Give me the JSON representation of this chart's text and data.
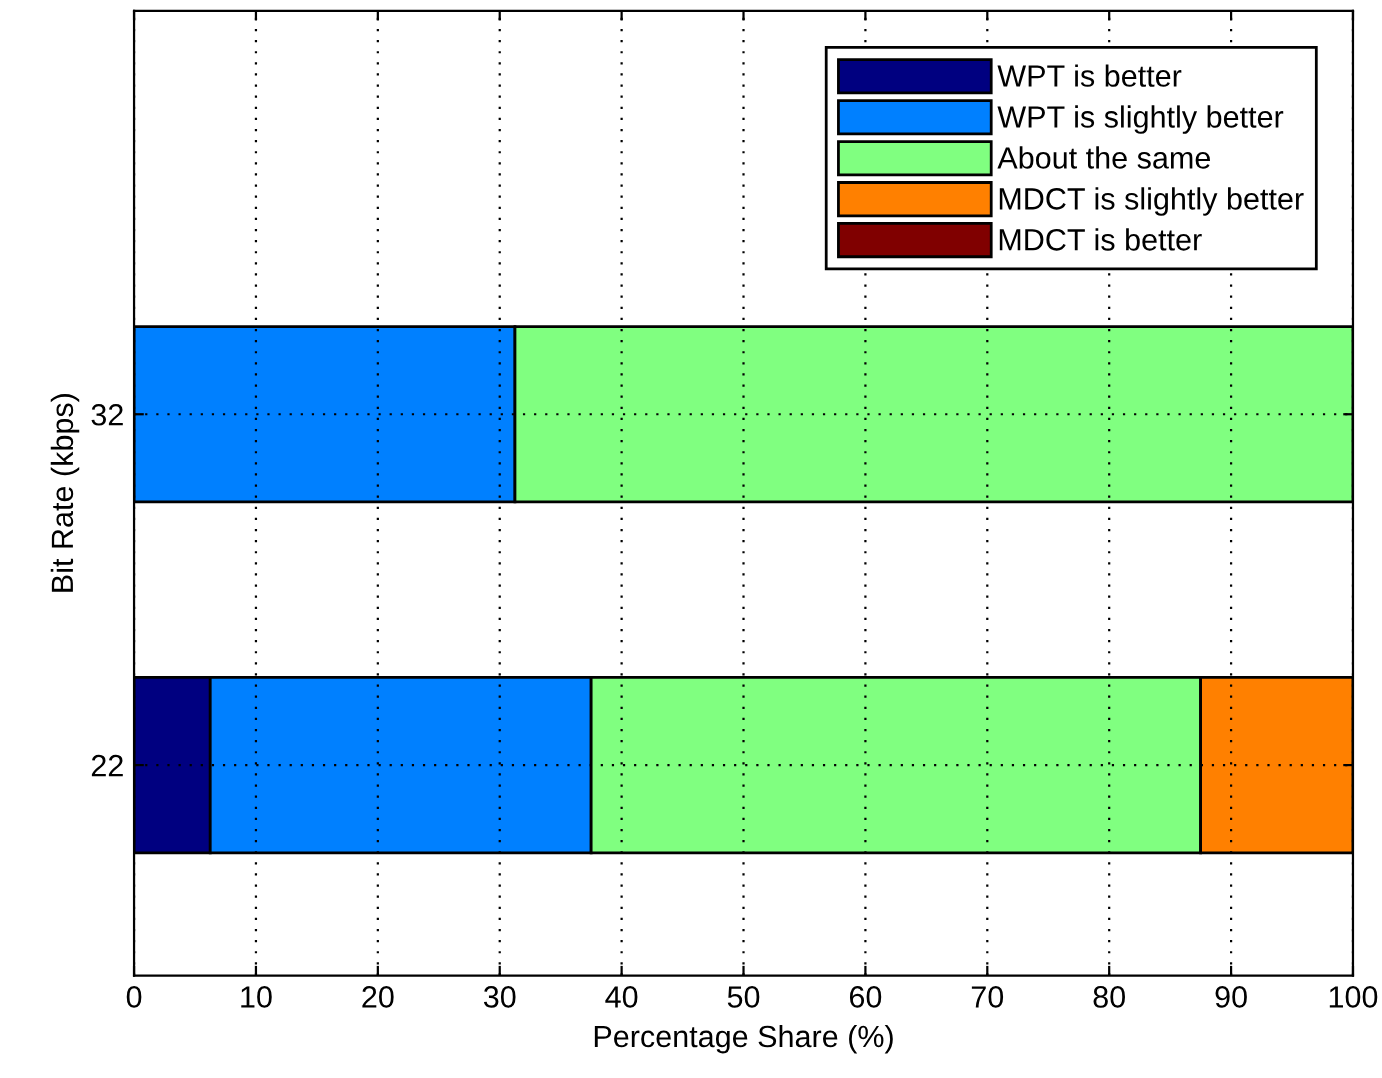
{
  "chart_data": {
    "type": "bar",
    "orientation": "horizontal",
    "stacked": true,
    "xlabel": "Percentage Share (%)",
    "ylabel": "Bit Rate (kbps)",
    "categories": [
      "32",
      "22"
    ],
    "series": [
      {
        "name": "WPT is better",
        "color": "#000080",
        "values": [
          0,
          6.25
        ]
      },
      {
        "name": "WPT is slightly better",
        "color": "#0080ff",
        "values": [
          31.25,
          31.25
        ]
      },
      {
        "name": "About the same",
        "color": "#80ff80",
        "values": [
          68.75,
          50
        ]
      },
      {
        "name": "MDCT is slightly better",
        "color": "#ff8000",
        "values": [
          0,
          12.5
        ]
      },
      {
        "name": "MDCT is better",
        "color": "#800000",
        "values": [
          0,
          0
        ]
      }
    ],
    "xlim": [
      0,
      100
    ],
    "xticks": [
      0,
      10,
      20,
      30,
      40,
      50,
      60,
      70,
      80,
      90,
      100
    ],
    "grid": true,
    "legend": "top right"
  }
}
